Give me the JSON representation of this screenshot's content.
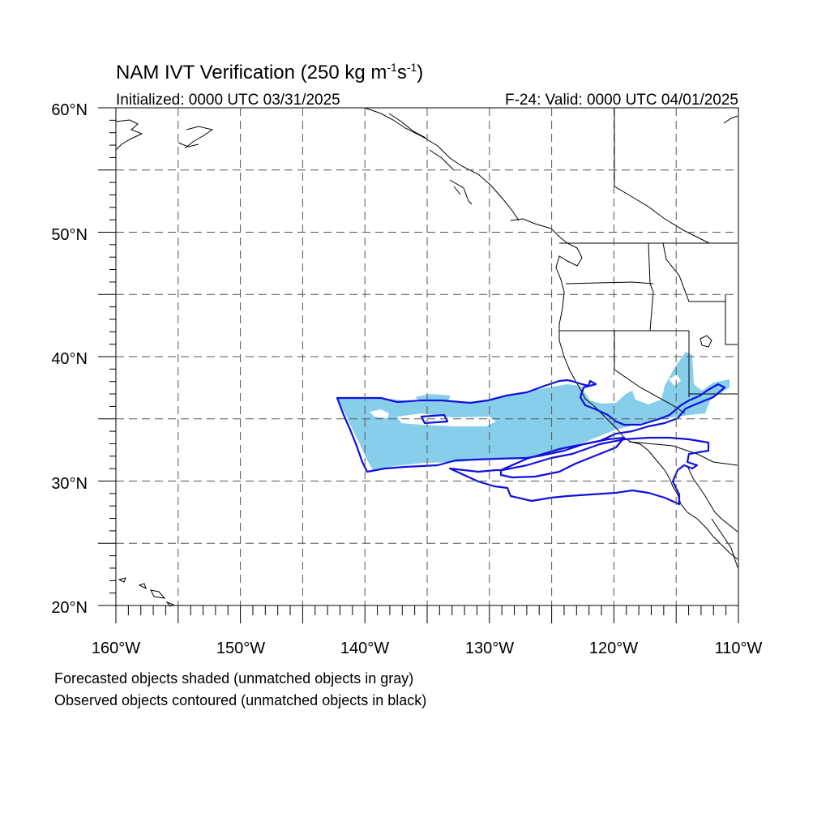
{
  "title": {
    "main": "NAM IVT Verification (250 kg m",
    "exp1": "-1",
    "mid": "s",
    "exp2": "-1",
    "close": ")"
  },
  "subtitle_left": "Initialized: 0000 UTC 03/31/2025",
  "subtitle_right": "F-24: Valid: 0000 UTC 04/01/2025",
  "lat_labels": [
    "60°N",
    "50°N",
    "40°N",
    "30°N",
    "20°N"
  ],
  "lon_labels": [
    "160°W",
    "150°W",
    "140°W",
    "130°W",
    "120°W",
    "110°W"
  ],
  "caption": {
    "line1": "Forecasted objects shaded (unmatched objects in gray)",
    "line2": "Observed objects contoured (unmatched objects in black)"
  },
  "colors": {
    "forecast_fill": "#87ceeb",
    "observed_contour": "#1010e0",
    "coastline": "#000000",
    "grid": "#555555"
  }
}
